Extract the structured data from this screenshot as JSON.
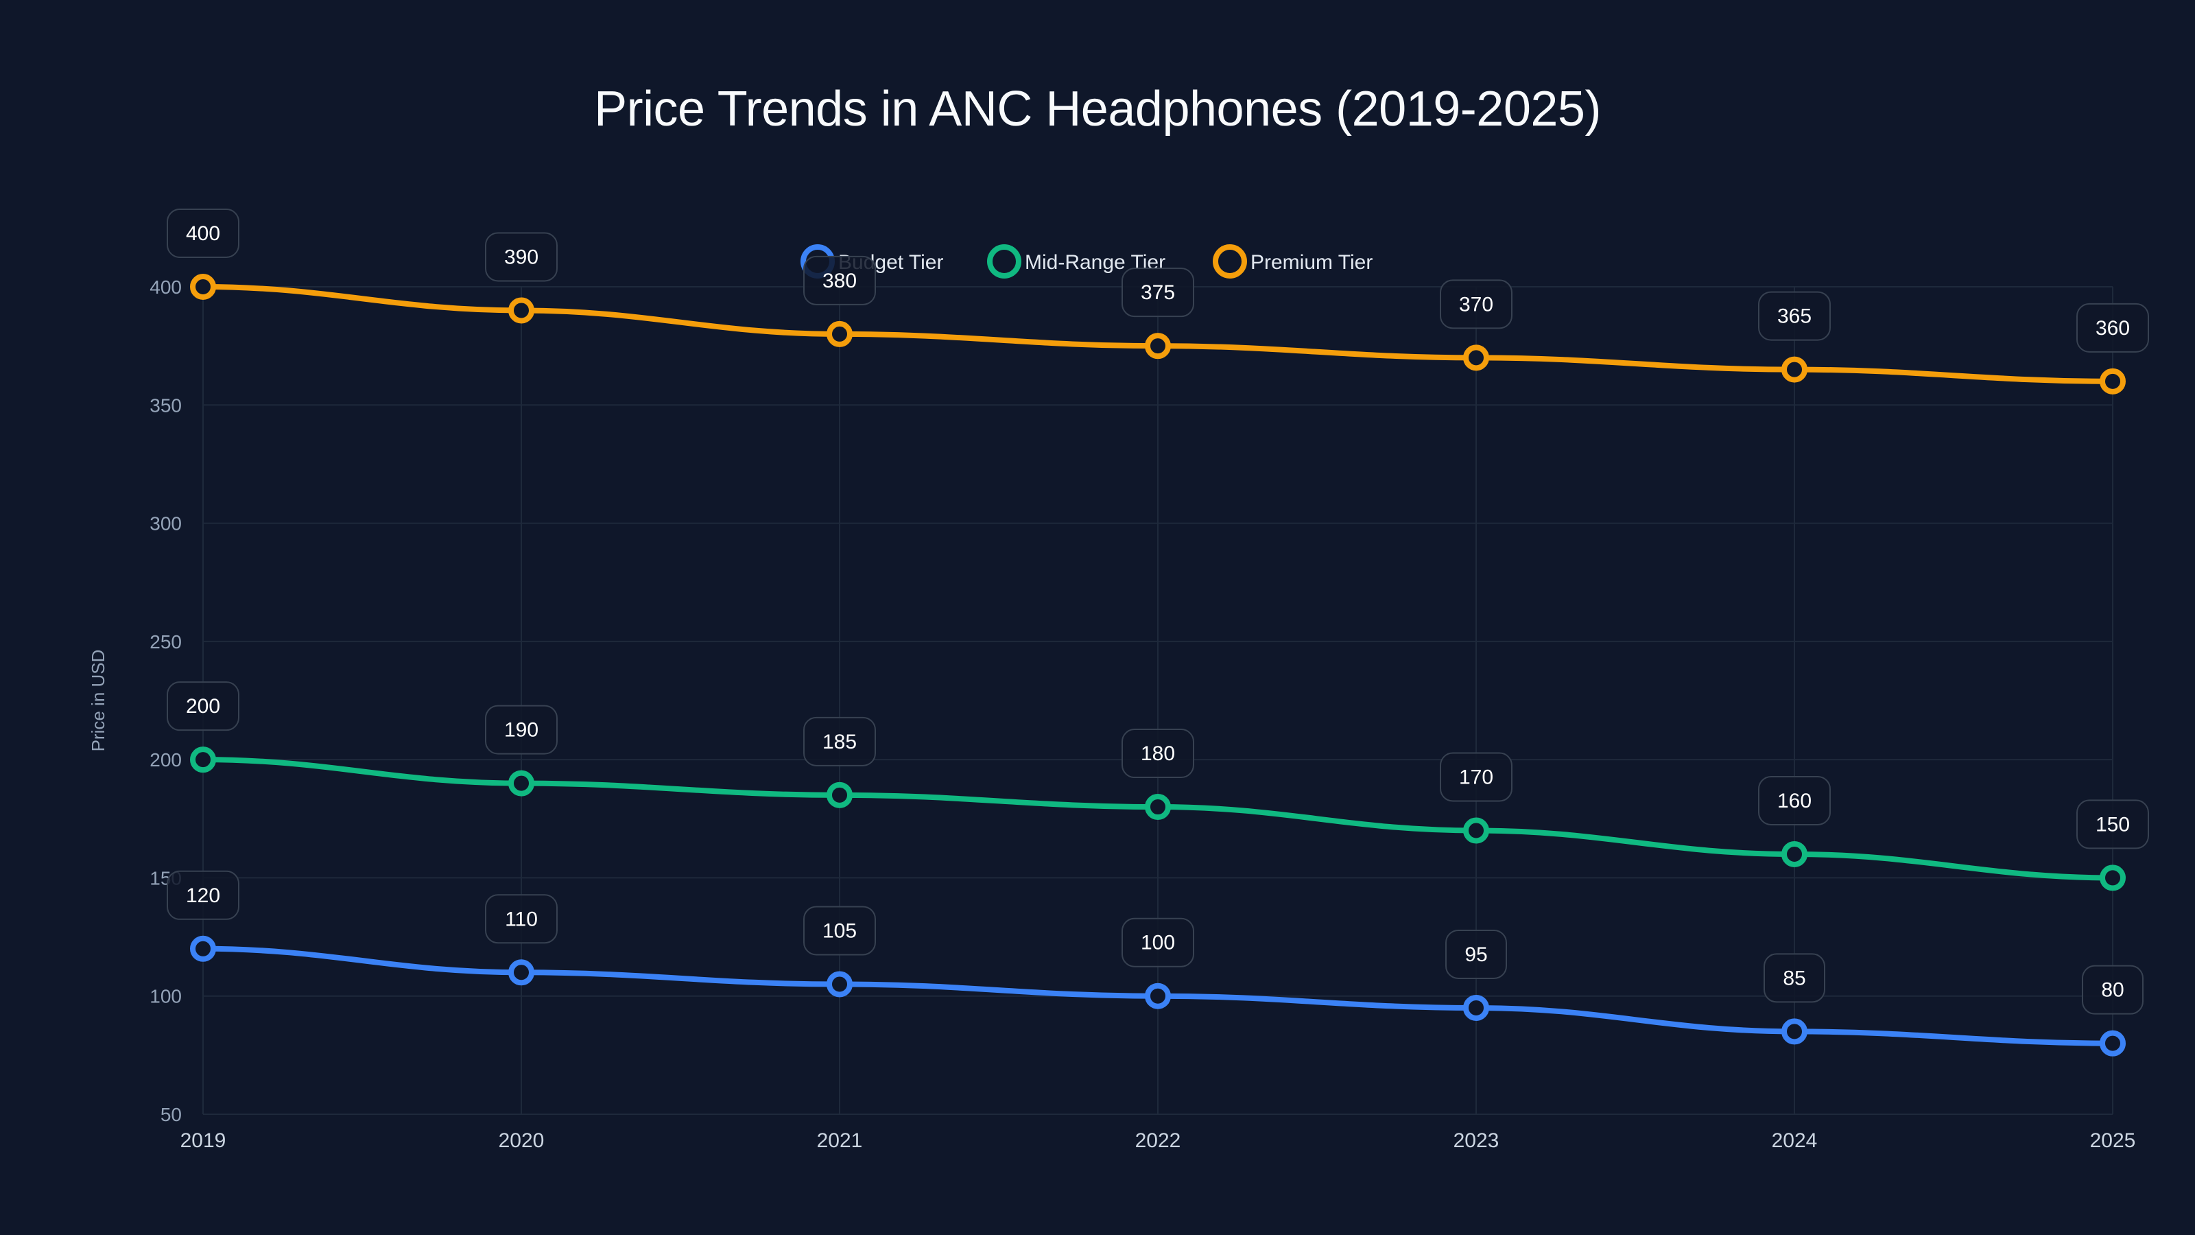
{
  "title": "Price Trends in ANC Headphones (2019-2025)",
  "y_axis_label": "Price in USD",
  "colors": {
    "background": "#0f172a",
    "grid": "#1e293b",
    "budget": "#3b82f6",
    "midrange": "#10b981",
    "premium": "#f59e0b",
    "label_box_border": "#374151",
    "label_box_fill": "#0f1628"
  },
  "legend": [
    {
      "label": "Budget Tier",
      "color": "#3b82f6"
    },
    {
      "label": "Mid-Range Tier",
      "color": "#10b981"
    },
    {
      "label": "Premium Tier",
      "color": "#f59e0b"
    }
  ],
  "chart_data": {
    "type": "line",
    "title": "Price Trends in ANC Headphones (2019-2025)",
    "xlabel": "",
    "ylabel": "Price in USD",
    "categories": [
      "2019",
      "2020",
      "2021",
      "2022",
      "2023",
      "2024",
      "2025"
    ],
    "ylim": [
      50,
      400
    ],
    "yticks": [
      50,
      100,
      150,
      200,
      250,
      300,
      350,
      400
    ],
    "grid": true,
    "legend_position": "top-center",
    "series": [
      {
        "name": "Budget Tier",
        "color": "#3b82f6",
        "values": [
          120,
          110,
          105,
          100,
          95,
          85,
          80
        ]
      },
      {
        "name": "Mid-Range Tier",
        "color": "#10b981",
        "values": [
          200,
          190,
          185,
          180,
          170,
          160,
          150
        ]
      },
      {
        "name": "Premium Tier",
        "color": "#f59e0b",
        "values": [
          400,
          390,
          380,
          375,
          370,
          365,
          360
        ]
      }
    ],
    "data_labels": true
  }
}
